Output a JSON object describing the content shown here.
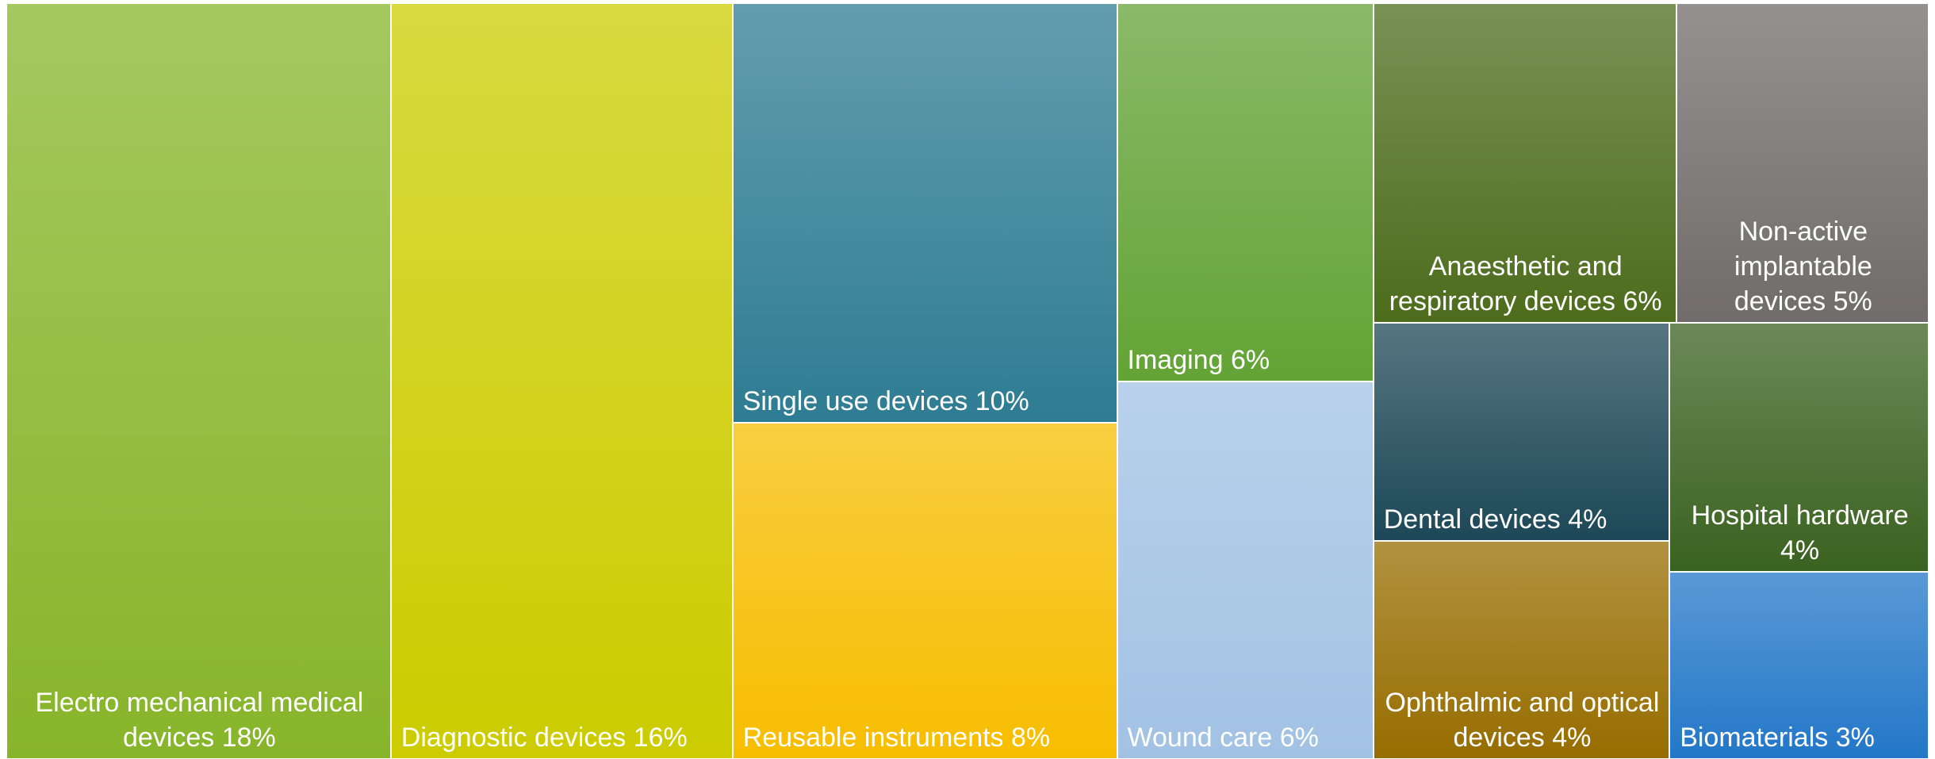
{
  "chart_data": {
    "type": "treemap",
    "categories": [
      "Electro mechanical medical devices",
      "Diagnostic devices",
      "Single use devices",
      "Reusable instruments",
      "Imaging",
      "Wound care",
      "Anaesthetic and respiratory devices",
      "Non-active implantable devices",
      "Dental devices",
      "Ophthalmic and optical devices",
      "Hospital hardware",
      "Biomaterials"
    ],
    "values": [
      18,
      16,
      10,
      8,
      6,
      6,
      6,
      5,
      4,
      4,
      4,
      3
    ],
    "value_labels": [
      "18%",
      "16%",
      "10%",
      "8%",
      "6%",
      "6%",
      "6%",
      "5%",
      "4%",
      "4%",
      "4%",
      "3%"
    ],
    "colors": [
      "#87b52a",
      "#cccc00",
      "#2e7c93",
      "#f7bd00",
      "#63a335",
      "#a2c2e4",
      "#4d6c1c",
      "#716c6c",
      "#1d4857",
      "#976d00",
      "#3a6220",
      "#2377c8"
    ]
  }
}
